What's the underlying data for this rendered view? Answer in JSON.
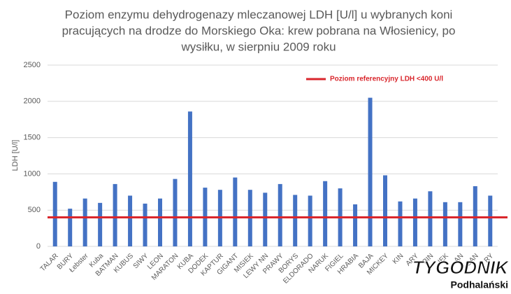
{
  "chart_data": {
    "type": "bar",
    "title": [
      "Poziom enzymu dehydrogenazy mleczanowej LDH [U/l] u wybranych koni",
      "pracujących na drodze do Morskiego Oka: krew pobrana na Włosienicy, po",
      "wysiłku,  w sierpniu 2009 roku"
    ],
    "ylabel": "LDH [U/l]",
    "categories": [
      "TALAR",
      "BURY",
      "Łebster",
      "Kuba",
      "BATMAN",
      "KUBUS",
      "SIWY",
      "LEON",
      "MARATON",
      "KUBA",
      "DODEK",
      "KAPTUR",
      "GIGANT",
      "MISIEK",
      "LEWY NN",
      "PRAWY",
      "BORYS",
      "ELDORADO",
      "NARUK",
      "FIGIEL",
      "HRABIA",
      "BAJA",
      "MICKEY",
      "KIN",
      "ARY",
      "BIN",
      "IEK",
      "AN",
      "GAN",
      "RY"
    ],
    "values": [
      890,
      520,
      660,
      600,
      860,
      700,
      590,
      660,
      930,
      1860,
      810,
      780,
      950,
      780,
      740,
      860,
      710,
      700,
      900,
      800,
      580,
      2050,
      980,
      620,
      660,
      760,
      610,
      610,
      830,
      700
    ],
    "color": "#4472c4",
    "ylim": [
      0,
      2500
    ],
    "yticks": [
      0,
      500,
      1000,
      1500,
      2000,
      2500
    ],
    "grid": true,
    "reference": {
      "label": "Poziom referencyjny LDH <400 U/l",
      "value": 400,
      "color": "#d9262c"
    },
    "legend": "top-right",
    "watermark": [
      "TYGODNIK",
      "Podhalański"
    ]
  }
}
